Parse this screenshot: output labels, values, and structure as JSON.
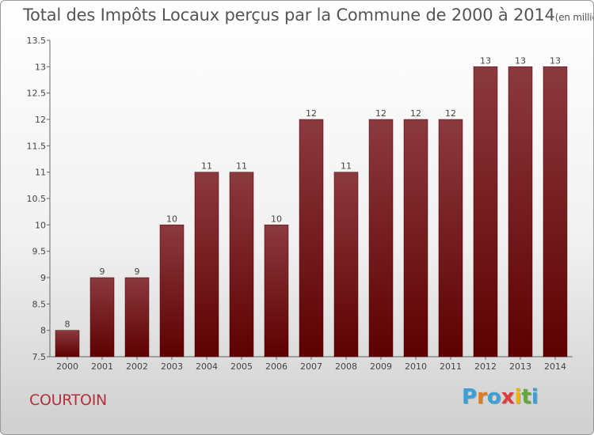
{
  "title": "Total des Impôts Locaux perçus par la Commune de 2000 à 2014",
  "title_unit": "(en milliers d'€)",
  "commune": "COURTOIN",
  "logo": {
    "letters": [
      "P",
      "r",
      "o",
      "x",
      "i",
      "t",
      "i"
    ],
    "colors": [
      "#3aa0d8",
      "#e07a1e",
      "#3aa0d8",
      "#e03a3a",
      "#f0b400",
      "#62a83a",
      "#3aa0d8"
    ]
  },
  "colors": {
    "bar_top": "#8b3a3f",
    "bar_bottom": "#5e0000",
    "commune": "#b0323c"
  },
  "chart_data": {
    "type": "bar",
    "title": "Total des Impôts Locaux perçus par la Commune de 2000 à 2014",
    "categories": [
      "2000",
      "2001",
      "2002",
      "2003",
      "2004",
      "2005",
      "2006",
      "2007",
      "2008",
      "2009",
      "2010",
      "2011",
      "2012",
      "2013",
      "2014"
    ],
    "values": [
      8,
      9,
      9,
      10,
      11,
      11,
      10,
      12,
      11,
      12,
      12,
      12,
      13,
      13,
      13
    ],
    "value_labels": [
      "8",
      "9",
      "9",
      "10",
      "11",
      "11",
      "10",
      "12",
      "11",
      "12",
      "12",
      "12",
      "13",
      "13",
      "13"
    ],
    "ylim": [
      7.5,
      13.5
    ],
    "yticks": [
      7.5,
      8,
      8.5,
      9,
      9.5,
      10,
      10.5,
      11,
      11.5,
      12,
      12.5,
      13,
      13.5
    ],
    "grid": false,
    "legend": "none"
  }
}
